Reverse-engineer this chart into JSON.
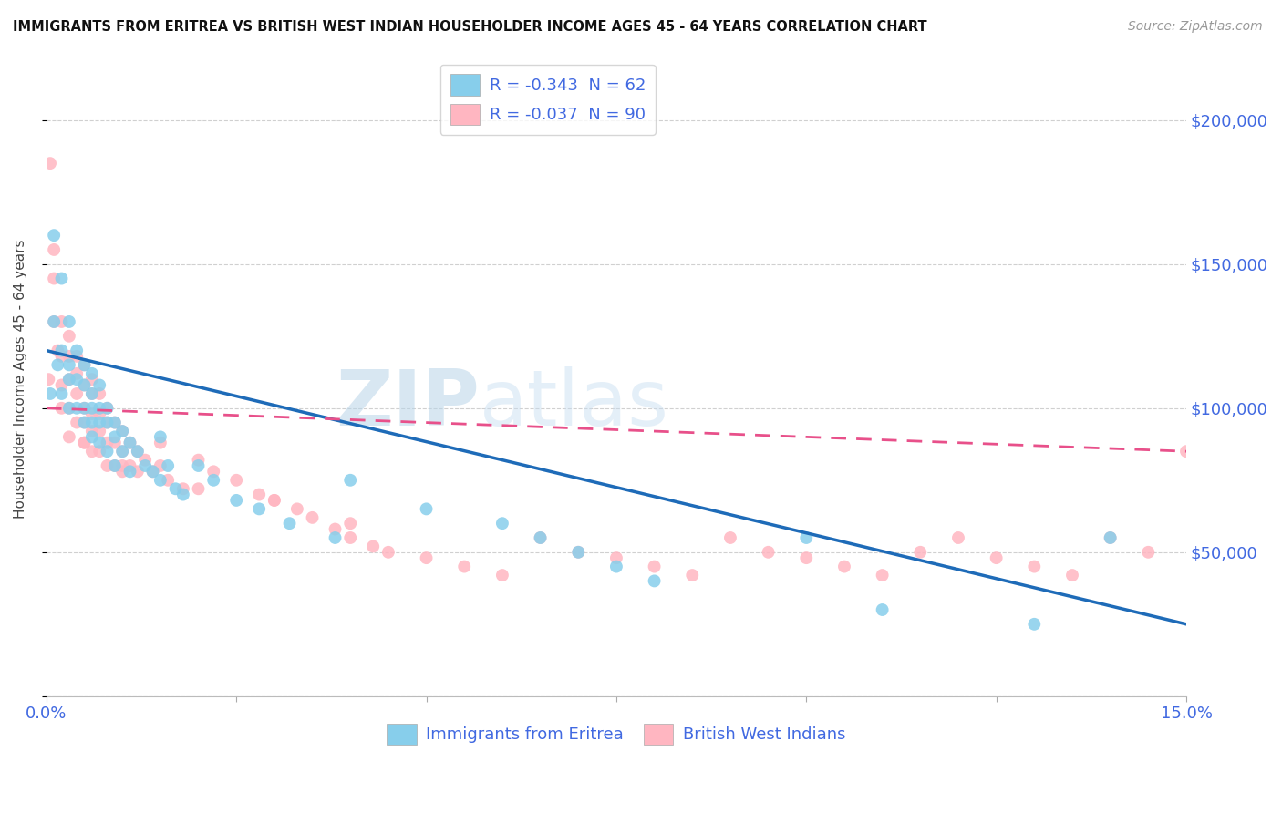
{
  "title": "IMMIGRANTS FROM ERITREA VS BRITISH WEST INDIAN HOUSEHOLDER INCOME AGES 45 - 64 YEARS CORRELATION CHART",
  "source": "Source: ZipAtlas.com",
  "ylabel": "Householder Income Ages 45 - 64 years",
  "xlim": [
    0.0,
    0.15
  ],
  "ylim": [
    0,
    220000
  ],
  "xticks": [
    0.0,
    0.025,
    0.05,
    0.075,
    0.1,
    0.125,
    0.15
  ],
  "xticklabels": [
    "0.0%",
    "",
    "",
    "",
    "",
    "",
    "15.0%"
  ],
  "yticks": [
    0,
    50000,
    100000,
    150000,
    200000
  ],
  "yticklabels": [
    "",
    "$50,000",
    "$100,000",
    "$150,000",
    "$200,000"
  ],
  "legend_r1": "R = -0.343  N = 62",
  "legend_r2": "R = -0.037  N = 90",
  "color_eritrea": "#87CEEB",
  "color_bwi": "#FFB6C1",
  "color_eritrea_line": "#1E6BB8",
  "color_bwi_line": "#E8508A",
  "watermark_zip": "ZIP",
  "watermark_atlas": "atlas",
  "background_color": "#FFFFFF",
  "eritrea_x": [
    0.0005,
    0.001,
    0.001,
    0.0015,
    0.002,
    0.002,
    0.002,
    0.003,
    0.003,
    0.003,
    0.003,
    0.004,
    0.004,
    0.004,
    0.005,
    0.005,
    0.005,
    0.005,
    0.006,
    0.006,
    0.006,
    0.006,
    0.006,
    0.007,
    0.007,
    0.007,
    0.007,
    0.008,
    0.008,
    0.008,
    0.009,
    0.009,
    0.009,
    0.01,
    0.01,
    0.011,
    0.011,
    0.012,
    0.013,
    0.014,
    0.015,
    0.015,
    0.016,
    0.017,
    0.018,
    0.02,
    0.022,
    0.025,
    0.028,
    0.032,
    0.038,
    0.04,
    0.05,
    0.06,
    0.065,
    0.07,
    0.075,
    0.08,
    0.1,
    0.11,
    0.13,
    0.14
  ],
  "eritrea_y": [
    105000,
    160000,
    130000,
    115000,
    145000,
    120000,
    105000,
    130000,
    115000,
    110000,
    100000,
    120000,
    110000,
    100000,
    115000,
    108000,
    100000,
    95000,
    112000,
    105000,
    100000,
    95000,
    90000,
    108000,
    100000,
    95000,
    88000,
    100000,
    95000,
    85000,
    95000,
    90000,
    80000,
    92000,
    85000,
    88000,
    78000,
    85000,
    80000,
    78000,
    90000,
    75000,
    80000,
    72000,
    70000,
    80000,
    75000,
    68000,
    65000,
    60000,
    55000,
    75000,
    65000,
    60000,
    55000,
    50000,
    45000,
    40000,
    55000,
    30000,
    25000,
    55000
  ],
  "bwi_x": [
    0.0003,
    0.0005,
    0.001,
    0.001,
    0.001,
    0.0015,
    0.002,
    0.002,
    0.002,
    0.002,
    0.003,
    0.003,
    0.003,
    0.003,
    0.003,
    0.004,
    0.004,
    0.004,
    0.004,
    0.005,
    0.005,
    0.005,
    0.005,
    0.005,
    0.006,
    0.006,
    0.006,
    0.006,
    0.006,
    0.007,
    0.007,
    0.007,
    0.007,
    0.008,
    0.008,
    0.008,
    0.008,
    0.009,
    0.009,
    0.009,
    0.01,
    0.01,
    0.01,
    0.011,
    0.011,
    0.012,
    0.012,
    0.013,
    0.014,
    0.015,
    0.015,
    0.016,
    0.018,
    0.02,
    0.022,
    0.025,
    0.028,
    0.03,
    0.033,
    0.035,
    0.038,
    0.04,
    0.043,
    0.045,
    0.05,
    0.055,
    0.06,
    0.065,
    0.07,
    0.075,
    0.08,
    0.085,
    0.09,
    0.095,
    0.1,
    0.105,
    0.11,
    0.115,
    0.12,
    0.125,
    0.13,
    0.135,
    0.14,
    0.145,
    0.15,
    0.04,
    0.03,
    0.02,
    0.01,
    0.005
  ],
  "bwi_y": [
    110000,
    185000,
    155000,
    145000,
    130000,
    120000,
    130000,
    118000,
    108000,
    100000,
    125000,
    118000,
    110000,
    100000,
    90000,
    118000,
    112000,
    105000,
    95000,
    115000,
    108000,
    100000,
    95000,
    88000,
    110000,
    105000,
    98000,
    92000,
    85000,
    105000,
    98000,
    92000,
    85000,
    100000,
    95000,
    88000,
    80000,
    95000,
    88000,
    80000,
    92000,
    85000,
    78000,
    88000,
    80000,
    85000,
    78000,
    82000,
    78000,
    88000,
    80000,
    75000,
    72000,
    82000,
    78000,
    75000,
    70000,
    68000,
    65000,
    62000,
    58000,
    55000,
    52000,
    50000,
    48000,
    45000,
    42000,
    55000,
    50000,
    48000,
    45000,
    42000,
    55000,
    50000,
    48000,
    45000,
    42000,
    50000,
    55000,
    48000,
    45000,
    42000,
    55000,
    50000,
    85000,
    60000,
    68000,
    72000,
    80000,
    88000
  ]
}
